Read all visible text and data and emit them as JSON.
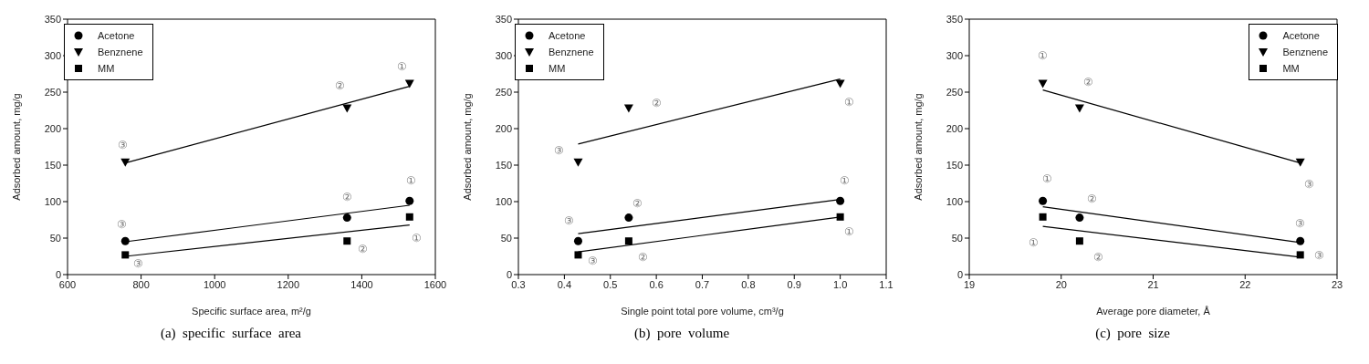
{
  "chart_data": [
    {
      "type": "scatter",
      "title": "(a)  specific  surface  area",
      "xlabel": "Specific surface area, m²/g",
      "ylabel": "Adsorbed amount, mg/g",
      "xlim": [
        600,
        1600
      ],
      "xticks": [
        600,
        800,
        1000,
        1200,
        1400,
        1600
      ],
      "ylim": [
        0,
        350
      ],
      "yticks": [
        0,
        50,
        100,
        150,
        200,
        250,
        300,
        350
      ],
      "legend": "top left",
      "x": [
        757,
        1360,
        1530
      ],
      "series": [
        {
          "name": "Acetone",
          "color": "#000000",
          "marker": "circle",
          "values": [
            46,
            78,
            101
          ]
        },
        {
          "name": "Benznene",
          "color": "#000000",
          "marker": "triangle",
          "values": [
            154,
            228,
            262
          ]
        },
        {
          "name": "MM",
          "color": "#000000",
          "marker": "square",
          "values": [
            27,
            46,
            79
          ]
        },
        {
          "type": "line",
          "color": "#000000",
          "marker": "none",
          "x": [
            757,
            1530
          ],
          "values": [
            153,
            258
          ]
        },
        {
          "type": "line",
          "color": "#000000",
          "marker": "none",
          "x": [
            757,
            1530
          ],
          "values": [
            45,
            95
          ]
        },
        {
          "type": "line",
          "color": "#000000",
          "marker": "none",
          "x": [
            757,
            1530
          ],
          "values": [
            25,
            68
          ]
        }
      ],
      "annotations": [
        {
          "text": "③",
          "x": 757,
          "y": 154
        },
        {
          "text": "②",
          "x": 1360,
          "y": 228
        },
        {
          "text": "①",
          "x": 1530,
          "y": 262
        },
        {
          "text": "③",
          "x": 757,
          "y": 46
        },
        {
          "text": "②",
          "x": 1360,
          "y": 78
        },
        {
          "text": "①",
          "x": 1530,
          "y": 101
        },
        {
          "text": "③",
          "x": 757,
          "y": 27
        },
        {
          "text": "②",
          "x": 1360,
          "y": 46
        },
        {
          "text": "①",
          "x": 1530,
          "y": 79
        }
      ]
    },
    {
      "type": "scatter",
      "title": "(b)  pore  volume",
      "xlabel": "Single point total pore volume, cm³/g",
      "ylabel": "Adsorbed amount, mg/g",
      "xlim": [
        0.3,
        1.1
      ],
      "xticks": [
        {
          "value": 0.3,
          "label": "0.3"
        },
        {
          "value": 0.4,
          "label": "0.4"
        },
        {
          "value": 0.5,
          "label": "0.5"
        },
        {
          "value": 0.6,
          "label": "0.6"
        },
        {
          "value": 0.7,
          "label": "0.7"
        },
        {
          "value": 0.8,
          "label": "0.8"
        },
        {
          "value": 0.9,
          "label": "0.9"
        },
        {
          "value": 1.0,
          "label": "1.0"
        },
        {
          "value": 1.1,
          "label": "1.1"
        }
      ],
      "ylim": [
        0,
        350
      ],
      "yticks": [
        0,
        50,
        100,
        150,
        200,
        250,
        300,
        350
      ],
      "legend": "top left",
      "x": [
        0.43,
        0.54,
        1.0
      ],
      "series": [
        {
          "name": "Acetone",
          "color": "#000000",
          "marker": "circle",
          "values": [
            46,
            78,
            101
          ]
        },
        {
          "name": "Benznene",
          "color": "#000000",
          "marker": "triangle",
          "values": [
            154,
            228,
            262
          ]
        },
        {
          "name": "MM",
          "color": "#000000",
          "marker": "square",
          "values": [
            27,
            46,
            79
          ]
        },
        {
          "type": "line",
          "color": "#000000",
          "marker": "none",
          "x": [
            0.43,
            1.0
          ],
          "values": [
            179,
            268
          ]
        },
        {
          "type": "line",
          "color": "#000000",
          "marker": "none",
          "x": [
            0.43,
            1.0
          ],
          "values": [
            56,
            103
          ]
        },
        {
          "type": "line",
          "color": "#000000",
          "marker": "none",
          "x": [
            0.43,
            1.0
          ],
          "values": [
            31,
            79
          ]
        }
      ],
      "annotations": [
        {
          "text": "③",
          "x": 0.43,
          "y": 154
        },
        {
          "text": "②",
          "x": 0.54,
          "y": 228
        },
        {
          "text": "①",
          "x": 1.0,
          "y": 262
        },
        {
          "text": "③",
          "x": 0.43,
          "y": 46
        },
        {
          "text": "②",
          "x": 0.54,
          "y": 78
        },
        {
          "text": "①",
          "x": 1.0,
          "y": 101
        },
        {
          "text": "③",
          "x": 0.43,
          "y": 27
        },
        {
          "text": "②",
          "x": 0.54,
          "y": 46
        },
        {
          "text": "①",
          "x": 1.0,
          "y": 79
        }
      ]
    },
    {
      "type": "scatter",
      "title": "(c)  pore  size",
      "xlabel": "Average pore diameter, Å",
      "ylabel": "Adsorbed amount, mg/g",
      "xlim": [
        19,
        23
      ],
      "xticks": [
        19,
        20,
        21,
        22,
        23
      ],
      "ylim": [
        0,
        350
      ],
      "yticks": [
        0,
        50,
        100,
        150,
        200,
        250,
        300,
        350
      ],
      "legend": "top right",
      "x": [
        19.8,
        20.2,
        22.6
      ],
      "series": [
        {
          "name": "Acetone",
          "color": "#000000",
          "marker": "circle",
          "values": [
            101,
            78,
            46
          ]
        },
        {
          "name": "Benznene",
          "color": "#000000",
          "marker": "triangle",
          "values": [
            262,
            228,
            154
          ]
        },
        {
          "name": "MM",
          "color": "#000000",
          "marker": "square",
          "values": [
            79,
            46,
            27
          ]
        },
        {
          "type": "line",
          "color": "#000000",
          "marker": "none",
          "x": [
            19.8,
            22.6
          ],
          "values": [
            253,
            153
          ]
        },
        {
          "type": "line",
          "color": "#000000",
          "marker": "none",
          "x": [
            19.8,
            22.6
          ],
          "values": [
            93,
            44
          ]
        },
        {
          "type": "line",
          "color": "#000000",
          "marker": "none",
          "x": [
            19.8,
            22.6
          ],
          "values": [
            66,
            24
          ]
        }
      ],
      "annotations": [
        {
          "text": "①",
          "x": 19.8,
          "y": 262
        },
        {
          "text": "②",
          "x": 20.2,
          "y": 228
        },
        {
          "text": "③",
          "x": 22.6,
          "y": 154
        },
        {
          "text": "①",
          "x": 19.8,
          "y": 101
        },
        {
          "text": "②",
          "x": 20.2,
          "y": 78
        },
        {
          "text": "③",
          "x": 22.6,
          "y": 46
        },
        {
          "text": "①",
          "x": 19.8,
          "y": 79
        },
        {
          "text": "②",
          "x": 20.2,
          "y": 46
        },
        {
          "text": "③",
          "x": 22.6,
          "y": 27
        }
      ]
    }
  ]
}
